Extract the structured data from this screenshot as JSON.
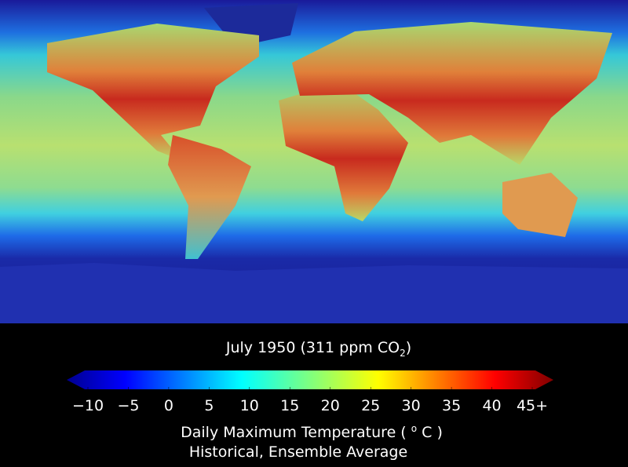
{
  "title": {
    "text": "July 1950 (311 ppm CO",
    "sub": "2",
    "end": ")"
  },
  "colorbar": {
    "lim": [
      -10,
      45
    ],
    "ticks": [
      {
        "value": -10,
        "label": "−10"
      },
      {
        "value": -5,
        "label": "−5"
      },
      0,
      5,
      10,
      15,
      20,
      25,
      30,
      35,
      40,
      {
        "value": 45,
        "label": "45+"
      }
    ],
    "label": {
      "text": "Daily Maximum Temperature ( ",
      "sup": "o",
      "end": " C )"
    },
    "subtitle": "Historical, Ensemble Average"
  }
}
